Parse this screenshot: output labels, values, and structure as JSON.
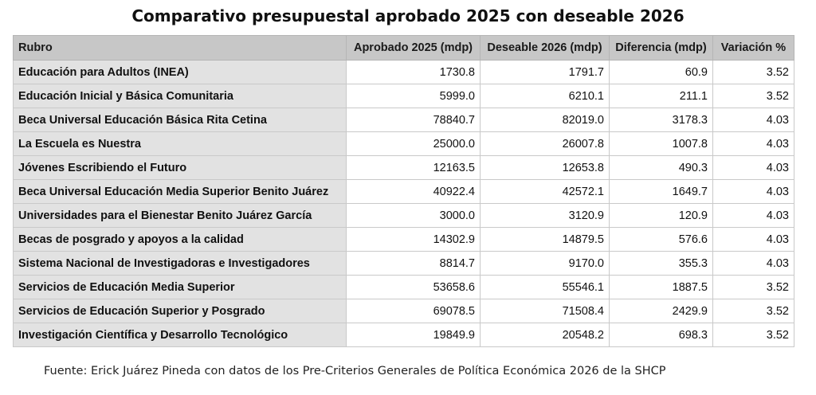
{
  "title": "Comparativo presupuestal aprobado 2025 con deseable 2026",
  "table": {
    "headers": {
      "rubro": "Rubro",
      "aprobado": "Aprobado 2025 (mdp)",
      "deseable": "Deseable 2026 (mdp)",
      "diferencia": "Diferencia (mdp)",
      "variacion": "Variación %"
    },
    "rows": [
      {
        "rubro": "Educación para Adultos (INEA)",
        "aprobado": "1730.8",
        "deseable": "1791.7",
        "diferencia": "60.9",
        "variacion": "3.52"
      },
      {
        "rubro": "Educación Inicial y Básica Comunitaria",
        "aprobado": "5999.0",
        "deseable": "6210.1",
        "diferencia": "211.1",
        "variacion": "3.52"
      },
      {
        "rubro": "Beca Universal Educación Básica Rita Cetina",
        "aprobado": "78840.7",
        "deseable": "82019.0",
        "diferencia": "3178.3",
        "variacion": "4.03"
      },
      {
        "rubro": "La Escuela es Nuestra",
        "aprobado": "25000.0",
        "deseable": "26007.8",
        "diferencia": "1007.8",
        "variacion": "4.03"
      },
      {
        "rubro": "Jóvenes Escribiendo el Futuro",
        "aprobado": "12163.5",
        "deseable": "12653.8",
        "diferencia": "490.3",
        "variacion": "4.03"
      },
      {
        "rubro": "Beca Universal Educación Media Superior Benito Juárez",
        "aprobado": "40922.4",
        "deseable": "42572.1",
        "diferencia": "1649.7",
        "variacion": "4.03"
      },
      {
        "rubro": "Universidades para el Bienestar Benito Juárez García",
        "aprobado": "3000.0",
        "deseable": "3120.9",
        "diferencia": "120.9",
        "variacion": "4.03"
      },
      {
        "rubro": "Becas de posgrado y apoyos a la calidad",
        "aprobado": "14302.9",
        "deseable": "14879.5",
        "diferencia": "576.6",
        "variacion": "4.03"
      },
      {
        "rubro": "Sistema Nacional de Investigadoras e Investigadores",
        "aprobado": "8814.7",
        "deseable": "9170.0",
        "diferencia": "355.3",
        "variacion": "4.03"
      },
      {
        "rubro": "Servicios de Educación Media Superior",
        "aprobado": "53658.6",
        "deseable": "55546.1",
        "diferencia": "1887.5",
        "variacion": "3.52"
      },
      {
        "rubro": "Servicios de Educación Superior y Posgrado",
        "aprobado": "69078.5",
        "deseable": "71508.4",
        "diferencia": "2429.9",
        "variacion": "3.52"
      },
      {
        "rubro": "Investigación Científica y Desarrollo Tecnológico",
        "aprobado": "19849.9",
        "deseable": "20548.2",
        "diferencia": "698.3",
        "variacion": "3.52"
      }
    ]
  },
  "source": "Fuente: Erick Juárez Pineda con datos de los Pre-Criterios Generales de Política Económica 2026 de la SHCP"
}
